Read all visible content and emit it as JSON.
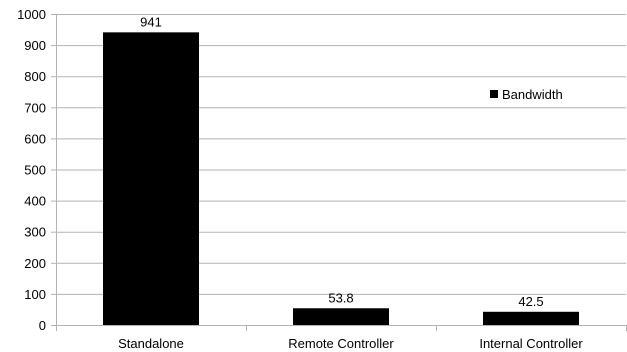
{
  "chart_data": {
    "type": "bar",
    "categories": [
      "Standalone",
      "Remote Controller",
      "Internal Controller"
    ],
    "series": [
      {
        "name": "Bandwidth",
        "values": [
          941,
          53.8,
          42.5
        ],
        "color": "#000000"
      }
    ],
    "data_labels": [
      "941",
      "53.8",
      "42.5"
    ],
    "ylim": [
      0,
      1000
    ],
    "yticks": [
      0,
      100,
      200,
      300,
      400,
      500,
      600,
      700,
      800,
      900,
      1000
    ],
    "grid": {
      "horizontal": true,
      "color": "#b3b3b3"
    },
    "legend_position": "right"
  }
}
